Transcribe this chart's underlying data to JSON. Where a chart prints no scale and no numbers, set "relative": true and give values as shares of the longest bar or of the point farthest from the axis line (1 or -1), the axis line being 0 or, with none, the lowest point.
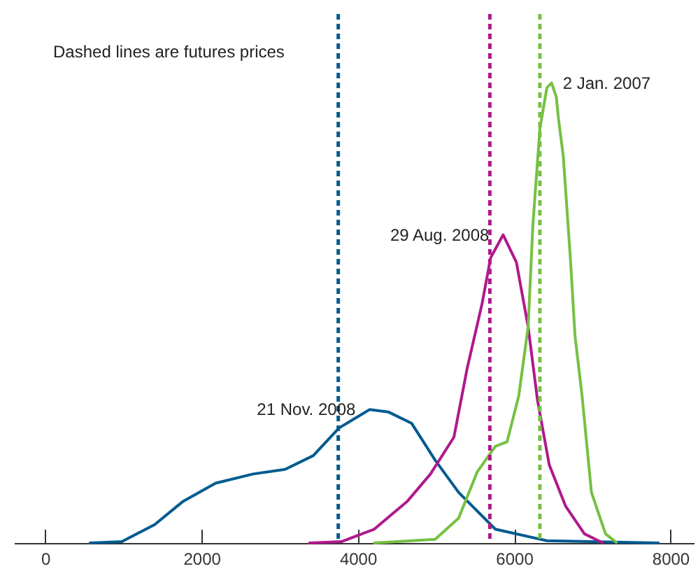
{
  "chart_data": {
    "type": "line",
    "relative": true,
    "xlim": [
      -400,
      8300
    ],
    "xticks": [
      0,
      2000,
      4000,
      6000,
      8000
    ],
    "grid": false,
    "marker": "none",
    "line_style": "solid",
    "annotations": [
      "Dashed lines are futures prices"
    ],
    "ref_lines": [
      {
        "axis": "x",
        "value": 3750,
        "color": "#005b8f",
        "line_style": "dashed"
      },
      {
        "axis": "x",
        "value": 5690,
        "color": "#b0198c",
        "line_style": "dashed"
      },
      {
        "axis": "x",
        "value": 6330,
        "color": "#76c043",
        "line_style": "dashed"
      }
    ],
    "series": [
      {
        "name": "21 Nov. 2008",
        "color": "#005b8f",
        "x": [
          560,
          980,
          1400,
          1760,
          2180,
          2660,
          3070,
          3430,
          3760,
          4150,
          4390,
          4690,
          4990,
          5290,
          5760,
          6420,
          7860
        ],
        "values": [
          0,
          0.003,
          0.04,
          0.09,
          0.13,
          0.15,
          0.16,
          0.19,
          0.25,
          0.29,
          0.285,
          0.26,
          0.18,
          0.11,
          0.03,
          0.005,
          0
        ]
      },
      {
        "name": "29 Aug. 2008",
        "color": "#b0198c",
        "x": [
          3370,
          3790,
          4210,
          4630,
          4930,
          5230,
          5400,
          5590,
          5700,
          5860,
          6030,
          6180,
          6300,
          6450,
          6660,
          6900,
          7140
        ],
        "values": [
          0,
          0.003,
          0.03,
          0.09,
          0.15,
          0.23,
          0.38,
          0.52,
          0.62,
          0.67,
          0.61,
          0.47,
          0.31,
          0.17,
          0.08,
          0.02,
          0
        ]
      },
      {
        "name": "2 Jan. 2007",
        "color": "#76c043",
        "x": [
          4200,
          4990,
          5290,
          5530,
          5760,
          5910,
          6060,
          6180,
          6240,
          6330,
          6420,
          6480,
          6540,
          6570,
          6630,
          6720,
          6780,
          6870,
          6990,
          7170,
          7320
        ],
        "values": [
          0,
          0.008,
          0.054,
          0.155,
          0.21,
          0.22,
          0.32,
          0.47,
          0.69,
          0.9,
          0.99,
          1,
          0.97,
          0.92,
          0.84,
          0.62,
          0.45,
          0.32,
          0.11,
          0.02,
          0
        ]
      }
    ]
  }
}
